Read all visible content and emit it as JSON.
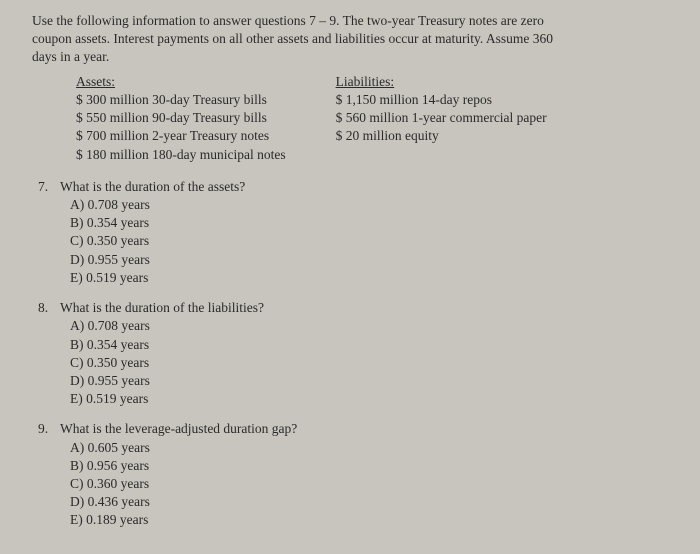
{
  "intro": {
    "line1": "Use the following information to answer questions 7 – 9. The two-year Treasury notes are zero",
    "line2": "coupon assets. Interest payments on all other assets and liabilities occur at maturity. Assume 360",
    "line3": "days in a year."
  },
  "assets": {
    "header": "Assets:",
    "items": [
      "$ 300 million 30-day Treasury bills",
      "$ 550 million 90-day Treasury bills",
      "$ 700 million 2-year Treasury notes",
      "$ 180 million 180-day municipal notes"
    ]
  },
  "liabilities": {
    "header": "Liabilities:",
    "items": [
      "$ 1,150 million 14-day repos",
      "$ 560 million 1-year commercial paper",
      "$ 20 million equity"
    ]
  },
  "questions": [
    {
      "num": "7.",
      "text": "What is the duration of the assets?",
      "choices": [
        "A)  0.708 years",
        "B)  0.354 years",
        "C)  0.350 years",
        "D)  0.955 years",
        "E)  0.519 years"
      ]
    },
    {
      "num": "8.",
      "text": "What is the duration of the liabilities?",
      "choices": [
        "A)  0.708 years",
        "B)  0.354 years",
        "C)  0.350 years",
        "D)  0.955 years",
        "E)  0.519 years"
      ]
    },
    {
      "num": "9.",
      "text": "What is the leverage-adjusted duration gap?",
      "choices": [
        "A)  0.605 years",
        "B)  0.956 years",
        "C)  0.360 years",
        "D)  0.436 years",
        "E)  0.189 years"
      ]
    }
  ]
}
